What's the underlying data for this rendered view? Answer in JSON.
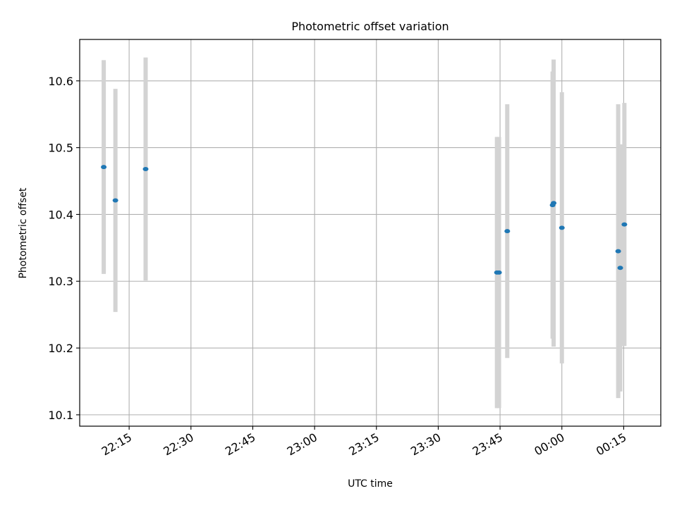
{
  "chart_data": {
    "type": "scatter",
    "title": "Photometric offset variation",
    "xlabel": "UTC time",
    "ylabel": "Photometric offset",
    "x_axis": {
      "type": "time",
      "range": [
        "22:03",
        "00:24"
      ],
      "ticks": [
        "22:15",
        "22:30",
        "22:45",
        "23:00",
        "23:15",
        "23:30",
        "23:45",
        "00:00",
        "00:15"
      ]
    },
    "y_axis": {
      "range": [
        10.083,
        10.662
      ],
      "ticks": [
        "10.1",
        "10.2",
        "10.3",
        "10.4",
        "10.5",
        "10.6"
      ]
    },
    "grid": true,
    "point_color": "#1f77b4",
    "errorbar_color": "#d3d3d3",
    "points": [
      {
        "t": "22:08:50",
        "y": 10.471,
        "err": 0.16
      },
      {
        "t": "22:11:40",
        "y": 10.421,
        "err": 0.167
      },
      {
        "t": "22:19:00",
        "y": 10.468,
        "err": 0.167
      },
      {
        "t": "23:44:15",
        "y": 10.313,
        "err": 0.203
      },
      {
        "t": "23:44:45",
        "y": 10.313,
        "err": 0.203
      },
      {
        "t": "23:46:45",
        "y": 10.375,
        "err": 0.19
      },
      {
        "t": "23:57:45",
        "y": 10.414,
        "err": 0.2
      },
      {
        "t": "23:58:00",
        "y": 10.417,
        "err": 0.215
      },
      {
        "t": "00:00:00",
        "y": 10.38,
        "err": 0.203
      },
      {
        "t": "00:13:40",
        "y": 10.345,
        "err": 0.22
      },
      {
        "t": "00:14:10",
        "y": 10.32,
        "err": 0.185
      },
      {
        "t": "00:15:10",
        "y": 10.385,
        "err": 0.182
      }
    ]
  }
}
